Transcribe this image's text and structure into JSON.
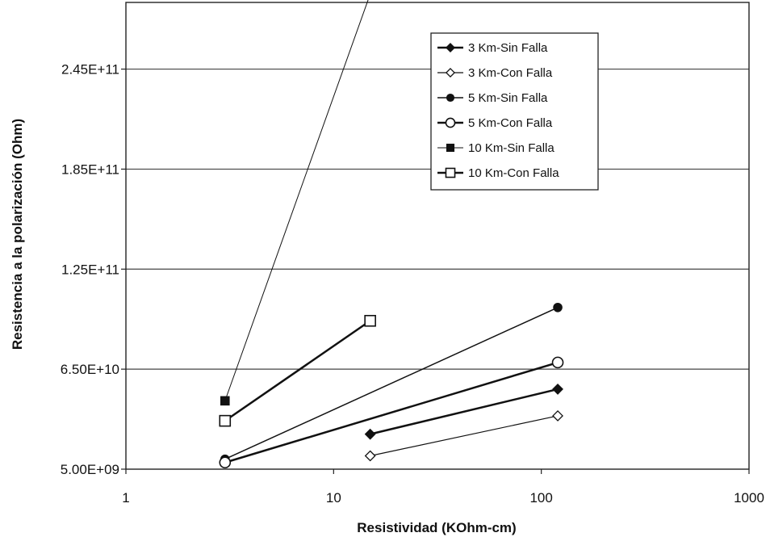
{
  "chart_data": {
    "type": "scatter",
    "xlabel": "Resistividad (KOhm-cm)",
    "ylabel": "Resistencia a la polarización (Ohm)",
    "x_scale": "log",
    "xlim": [
      1,
      1000
    ],
    "ylim": [
      5000000000,
      285000000000
    ],
    "x_ticks": [
      1,
      10,
      100,
      1000
    ],
    "x_tick_labels": [
      "1",
      "10",
      "100",
      "1000"
    ],
    "y_ticks": [
      5000000000,
      65000000000,
      125000000000,
      185000000000,
      245000000000
    ],
    "y_tick_labels": [
      "5.00E+09",
      "6.50E+10",
      "1.25E+11",
      "1.85E+11",
      "2.45E+11"
    ],
    "grid": "horizontal major gridlines",
    "legend_position": "top-right",
    "series": [
      {
        "name": "3 Km-Sin Falla",
        "marker": "diamond-filled",
        "line_width": 2.5,
        "color": "#111111",
        "x": [
          15,
          120
        ],
        "y": [
          26000000000,
          53000000000
        ]
      },
      {
        "name": "3 Km-Con Falla",
        "marker": "diamond-open",
        "line_width": 1.2,
        "color": "#111111",
        "x": [
          15,
          120
        ],
        "y": [
          13000000000,
          37000000000
        ]
      },
      {
        "name": "5 Km-Sin Falla",
        "marker": "circle-filled",
        "line_width": 1.5,
        "color": "#111111",
        "x": [
          3,
          120
        ],
        "y": [
          11000000000,
          102000000000
        ]
      },
      {
        "name": "5 Km-Con Falla",
        "marker": "circle-open",
        "line_width": 2.5,
        "color": "#111111",
        "x": [
          3,
          120
        ],
        "y": [
          9000000000,
          69000000000
        ]
      },
      {
        "name": "10 Km-Sin Falla",
        "marker": "square-filled",
        "line_width": 1.0,
        "color": "#111111",
        "x": [
          3,
          15
        ],
        "y": [
          46000000000,
          290000000000
        ]
      },
      {
        "name": "10 Km-Con Falla",
        "marker": "square-open",
        "line_width": 2.5,
        "color": "#111111",
        "x": [
          3,
          15
        ],
        "y": [
          34000000000,
          94000000000
        ]
      }
    ]
  }
}
